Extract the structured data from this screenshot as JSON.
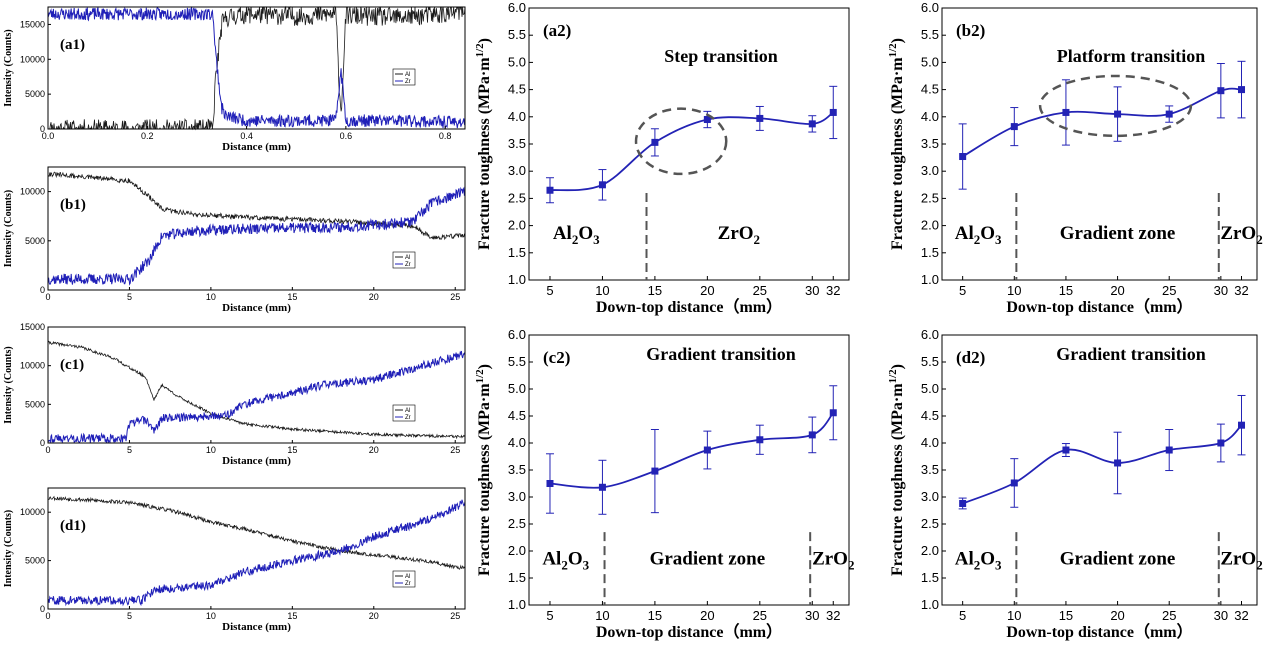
{
  "colors": {
    "al_line": "#1a1a1a",
    "zr_line": "#2020b8",
    "fit_line": "#2323b5",
    "dash": "#555555"
  },
  "chart_data": [
    {
      "id": "a1",
      "type": "line",
      "panel_label": "(a1)",
      "xlabel": "Distance (mm)",
      "ylabel": "Intensity (Counts)",
      "xlim": [
        0,
        0.84
      ],
      "ylim": [
        0,
        17500
      ],
      "xticks": [
        0,
        0.2,
        0.4,
        0.6,
        0.8
      ],
      "xtick_labels": [
        "0.0",
        "0.2",
        "0.4",
        "0.6",
        "0.8"
      ],
      "yticks": [
        0,
        5000,
        10000,
        15000
      ],
      "ytick_labels": [
        "0",
        "5000",
        "10000",
        "15000"
      ],
      "series": [
        {
          "name": "Al",
          "x": [
            0,
            0.1,
            0.2,
            0.3,
            0.333,
            0.336,
            0.345,
            0.35,
            0.36,
            0.4,
            0.5,
            0.58,
            0.585,
            0.59,
            0.595,
            0.6,
            0.7,
            0.8,
            0.84
          ],
          "y": [
            0,
            0,
            0,
            0,
            0,
            6000,
            12000,
            15000,
            16000,
            16500,
            16200,
            16500,
            9000,
            2000,
            9000,
            16300,
            16000,
            16500,
            17000
          ],
          "noise": 1400,
          "seed": 11
        },
        {
          "name": "Zr",
          "x": [
            0,
            0.1,
            0.2,
            0.3,
            0.333,
            0.336,
            0.345,
            0.35,
            0.36,
            0.4,
            0.5,
            0.58,
            0.585,
            0.59,
            0.595,
            0.6,
            0.7,
            0.8,
            0.84
          ],
          "y": [
            16500,
            16500,
            16500,
            16500,
            16500,
            12000,
            6000,
            3000,
            1800,
            1200,
            1200,
            1200,
            5000,
            8500,
            5000,
            1200,
            1200,
            1000,
            1000
          ],
          "noise": 900,
          "seed": 23
        }
      ]
    },
    {
      "id": "b1",
      "type": "line",
      "panel_label": "(b1)",
      "xlabel": "Distance (mm)",
      "ylabel": "Intensity (Counts)",
      "xlim": [
        0,
        25.6
      ],
      "ylim": [
        0,
        12500
      ],
      "xticks": [
        0,
        5,
        10,
        15,
        20,
        25
      ],
      "xtick_labels": [
        "0",
        "5",
        "10",
        "15",
        "20",
        "25"
      ],
      "yticks": [
        0,
        5000,
        10000
      ],
      "ytick_labels": [
        "0",
        "5000",
        "10000"
      ],
      "series": [
        {
          "name": "Al",
          "x": [
            0,
            5,
            6.2,
            7,
            9,
            12,
            15,
            18,
            20,
            22.5,
            23.5,
            25.6
          ],
          "y": [
            11800,
            11100,
            9500,
            8200,
            7700,
            7400,
            7200,
            7000,
            6800,
            6500,
            5300,
            5600
          ],
          "noise": 250,
          "seed": 31
        },
        {
          "name": "Zr",
          "x": [
            0,
            5,
            6.2,
            7,
            9,
            12,
            15,
            18,
            20,
            22.5,
            23.5,
            25.6
          ],
          "y": [
            1100,
            1100,
            3000,
            5500,
            6000,
            6200,
            6300,
            6400,
            6600,
            7000,
            8800,
            10000
          ],
          "noise": 550,
          "seed": 37
        }
      ]
    },
    {
      "id": "c1",
      "type": "line",
      "panel_label": "(c1)",
      "xlabel": "Distance (mm)",
      "ylabel": "Intensity (Counts)",
      "xlim": [
        0,
        25.6
      ],
      "ylim": [
        0,
        15000
      ],
      "xticks": [
        0,
        5,
        10,
        15,
        20,
        25
      ],
      "xtick_labels": [
        "0",
        "5",
        "10",
        "15",
        "20",
        "25"
      ],
      "yticks": [
        0,
        5000,
        10000,
        15000
      ],
      "ytick_labels": [
        "0",
        "5000",
        "10000",
        "15000"
      ],
      "series": [
        {
          "name": "Al",
          "x": [
            0,
            2,
            4,
            6,
            6.5,
            7,
            8,
            10,
            12,
            15,
            20,
            25.6
          ],
          "y": [
            13000,
            12400,
            11000,
            8500,
            5600,
            7500,
            6000,
            3800,
            2500,
            1800,
            1100,
            800
          ],
          "noise": 180,
          "seed": 41
        },
        {
          "name": "Zr",
          "x": [
            0,
            4.8,
            5,
            6,
            6.5,
            7,
            10,
            11,
            12,
            15,
            17,
            20,
            25.6
          ],
          "y": [
            600,
            600,
            2500,
            3000,
            1600,
            3200,
            3500,
            3600,
            5000,
            6500,
            7500,
            8200,
            11500
          ],
          "noise": 550,
          "seed": 43
        }
      ]
    },
    {
      "id": "d1",
      "type": "line",
      "panel_label": "(d1)",
      "xlabel": "Distance (mm)",
      "ylabel": "Intensity (Counts)",
      "xlim": [
        0,
        25.6
      ],
      "ylim": [
        0,
        12500
      ],
      "xticks": [
        0,
        5,
        10,
        15,
        20,
        25
      ],
      "xtick_labels": [
        "0",
        "5",
        "10",
        "15",
        "20",
        "25"
      ],
      "yticks": [
        0,
        5000,
        10000
      ],
      "ytick_labels": [
        "0",
        "5000",
        "10000"
      ],
      "series": [
        {
          "name": "Al",
          "x": [
            0,
            3,
            5,
            8,
            10,
            12,
            15,
            18,
            20,
            23,
            25.6
          ],
          "y": [
            11500,
            11200,
            11000,
            10000,
            9000,
            8300,
            7000,
            6000,
            5600,
            5000,
            4200
          ],
          "noise": 200,
          "seed": 53
        },
        {
          "name": "Zr",
          "x": [
            0,
            5.8,
            6.5,
            8,
            10,
            12,
            15,
            18,
            20,
            23,
            25.6
          ],
          "y": [
            900,
            900,
            2000,
            2200,
            2500,
            3800,
            5000,
            6000,
            7500,
            9000,
            11000
          ],
          "noise": 450,
          "seed": 59
        }
      ]
    },
    {
      "id": "a2",
      "type": "scatter",
      "panel_label": "(a2)",
      "title": "Step transition",
      "xlabel": "Down-top distance（mm）",
      "ylabel": "Fracture toughness (MPa·m",
      "ylabel_exp": "1/2",
      "ylabel_close": ")",
      "xlim": [
        3,
        33.5
      ],
      "ylim": [
        1.0,
        6.0
      ],
      "xticks": [
        5,
        10,
        15,
        20,
        25,
        30,
        32
      ],
      "xtick_labels": [
        "5",
        "10",
        "15",
        "20",
        "25",
        "30",
        "32"
      ],
      "yticks": [
        1.0,
        1.5,
        2.0,
        2.5,
        3.0,
        3.5,
        4.0,
        4.5,
        5.0,
        5.5,
        6.0
      ],
      "ytick_labels": [
        "1.0",
        "1.5",
        "2.0",
        "2.5",
        "3.0",
        "3.5",
        "4.0",
        "4.5",
        "5.0",
        "5.5",
        "6.0"
      ],
      "x": [
        5,
        10,
        15,
        20,
        25,
        30,
        32
      ],
      "y": [
        2.65,
        2.75,
        3.53,
        3.95,
        3.97,
        3.87,
        4.08
      ],
      "err": [
        0.23,
        0.28,
        0.25,
        0.15,
        0.22,
        0.15,
        0.48
      ],
      "dividers": [
        14.2
      ],
      "zone_labels": [
        {
          "text": "Al",
          "sub": "2",
          "post": "O",
          "sub2": "3",
          "x": 7.5
        },
        {
          "text": "ZrO",
          "sub": "2",
          "post": "",
          "sub2": "",
          "x": 23
        }
      ],
      "ellipse": {
        "cx": 17.5,
        "cy": 3.55,
        "rx": 4.3,
        "ry": 0.6
      }
    },
    {
      "id": "b2",
      "type": "scatter",
      "panel_label": "(b2)",
      "title": "Platform transition",
      "xlabel": "Down-top distance（mm）",
      "ylabel": "Fracture toughness (MPa·m",
      "ylabel_exp": "1/2",
      "ylabel_close": ")",
      "xlim": [
        3,
        33.5
      ],
      "ylim": [
        1.0,
        6.0
      ],
      "xticks": [
        5,
        10,
        15,
        20,
        25,
        30,
        32
      ],
      "xtick_labels": [
        "5",
        "10",
        "15",
        "20",
        "25",
        "30",
        "32"
      ],
      "yticks": [
        1.0,
        1.5,
        2.0,
        2.5,
        3.0,
        3.5,
        4.0,
        4.5,
        5.0,
        5.5,
        6.0
      ],
      "ytick_labels": [
        "1.0",
        "1.5",
        "2.0",
        "2.5",
        "3.0",
        "3.5",
        "4.0",
        "4.5",
        "5.0",
        "5.5",
        "6.0"
      ],
      "x": [
        5,
        10,
        15,
        20,
        25,
        30,
        32
      ],
      "y": [
        3.27,
        3.82,
        4.08,
        4.05,
        4.05,
        4.48,
        4.5
      ],
      "err": [
        0.6,
        0.35,
        0.6,
        0.5,
        0.15,
        0.5,
        0.52
      ],
      "dividers": [
        10.2,
        29.8
      ],
      "zone_labels": [
        {
          "text": "Al",
          "sub": "2",
          "post": "O",
          "sub2": "3",
          "x": 6.5
        },
        {
          "text": "Gradient zone",
          "sub": "",
          "post": "",
          "sub2": "",
          "x": 20
        },
        {
          "text": "ZrO",
          "sub": "2",
          "post": "",
          "sub2": "",
          "x": 32
        }
      ],
      "ellipse": {
        "cx": 19.8,
        "cy": 4.2,
        "rx": 7.3,
        "ry": 0.55
      }
    },
    {
      "id": "c2",
      "type": "scatter",
      "panel_label": "(c2)",
      "title": "Gradient transition",
      "xlabel": "Down-top distance（mm）",
      "ylabel": "Fracture toughness (MPa·m",
      "ylabel_exp": "1/2",
      "ylabel_close": ")",
      "xlim": [
        3,
        33.5
      ],
      "ylim": [
        1.0,
        6.0
      ],
      "xticks": [
        5,
        10,
        15,
        20,
        25,
        30,
        32
      ],
      "xtick_labels": [
        "5",
        "10",
        "15",
        "20",
        "25",
        "30",
        "32"
      ],
      "yticks": [
        1.0,
        1.5,
        2.0,
        2.5,
        3.0,
        3.5,
        4.0,
        4.5,
        5.0,
        5.5,
        6.0
      ],
      "ytick_labels": [
        "1.0",
        "1.5",
        "2.0",
        "2.5",
        "3.0",
        "3.5",
        "4.0",
        "4.5",
        "5.0",
        "5.5",
        "6.0"
      ],
      "x": [
        5,
        10,
        15,
        20,
        25,
        30,
        32
      ],
      "y": [
        3.25,
        3.18,
        3.48,
        3.87,
        4.06,
        4.15,
        4.56
      ],
      "err": [
        0.55,
        0.5,
        0.77,
        0.35,
        0.27,
        0.33,
        0.5
      ],
      "dividers": [
        10.2,
        29.8
      ],
      "zone_labels": [
        {
          "text": "Al",
          "sub": "2",
          "post": "O",
          "sub2": "3",
          "x": 6.5
        },
        {
          "text": "Gradient zone",
          "sub": "",
          "post": "",
          "sub2": "",
          "x": 20
        },
        {
          "text": "ZrO",
          "sub": "2",
          "post": "",
          "sub2": "",
          "x": 32
        }
      ]
    },
    {
      "id": "d2",
      "type": "scatter",
      "panel_label": "(d2)",
      "title": "Gradient transition",
      "xlabel": "Down-top distance（mm）",
      "ylabel": "Fracture toughness (MPa·m",
      "ylabel_exp": "1/2",
      "ylabel_close": ")",
      "xlim": [
        3,
        33.5
      ],
      "ylim": [
        1.0,
        6.0
      ],
      "xticks": [
        5,
        10,
        15,
        20,
        25,
        30,
        32
      ],
      "xtick_labels": [
        "5",
        "10",
        "15",
        "20",
        "25",
        "30",
        "32"
      ],
      "yticks": [
        1.0,
        1.5,
        2.0,
        2.5,
        3.0,
        3.5,
        4.0,
        4.5,
        5.0,
        5.5,
        6.0
      ],
      "ytick_labels": [
        "1.0",
        "1.5",
        "2.0",
        "2.5",
        "3.0",
        "3.5",
        "4.0",
        "4.5",
        "5.0",
        "5.5",
        "6.0"
      ],
      "x": [
        5,
        10,
        15,
        20,
        25,
        30,
        32
      ],
      "y": [
        2.88,
        3.26,
        3.87,
        3.63,
        3.87,
        4.0,
        4.33
      ],
      "err": [
        0.1,
        0.45,
        0.12,
        0.57,
        0.38,
        0.35,
        0.55
      ],
      "dividers": [
        10.2,
        29.8
      ],
      "zone_labels": [
        {
          "text": "Al",
          "sub": "2",
          "post": "O",
          "sub2": "3",
          "x": 6.5
        },
        {
          "text": "Gradient zone",
          "sub": "",
          "post": "",
          "sub2": "",
          "x": 20
        },
        {
          "text": "ZrO",
          "sub": "2",
          "post": "",
          "sub2": "",
          "x": 32
        }
      ]
    }
  ]
}
